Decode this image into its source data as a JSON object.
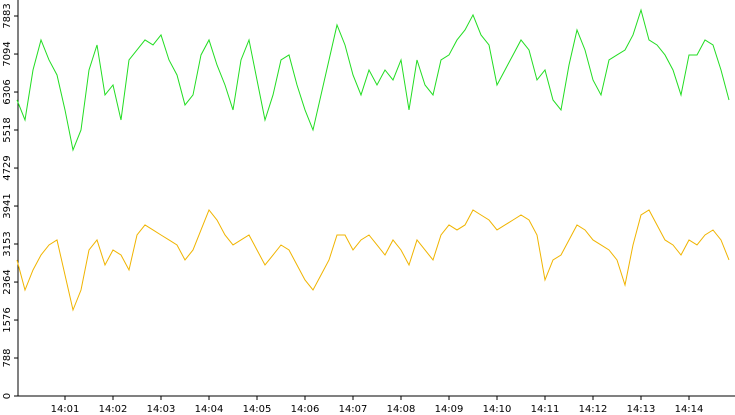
{
  "chart_data": {
    "type": "line",
    "categories": [
      null,
      null,
      null,
      null,
      null,
      null,
      "14:01",
      null,
      null,
      null,
      null,
      null,
      "14:02",
      null,
      null,
      null,
      null,
      null,
      "14:03",
      null,
      null,
      null,
      null,
      null,
      "14:04",
      null,
      null,
      null,
      null,
      null,
      "14:05",
      null,
      null,
      null,
      null,
      null,
      "14:06",
      null,
      null,
      null,
      null,
      null,
      "14:07",
      null,
      null,
      null,
      null,
      null,
      "14:08",
      null,
      null,
      null,
      null,
      null,
      "14:09",
      null,
      null,
      null,
      null,
      null,
      "14:10",
      null,
      null,
      null,
      null,
      null,
      "14:11",
      null,
      null,
      null,
      null,
      null,
      "14:12",
      null,
      null,
      null,
      null,
      null,
      "14:13",
      null,
      null,
      null,
      null,
      null,
      "14:14",
      null,
      null,
      null,
      null,
      null
    ],
    "series": [
      {
        "color": "#22dd22",
        "values": [
          6141,
          5726,
          6763,
          7386,
          6971,
          6660,
          5934,
          5104,
          5519,
          6763,
          7282,
          6245,
          6452,
          5726,
          6971,
          7178,
          7386,
          7282,
          7490,
          6971,
          6660,
          6037,
          6245,
          7075,
          7386,
          6867,
          6452,
          5934,
          6971,
          7386,
          6556,
          5726,
          6245,
          6971,
          7075,
          6452,
          5934,
          5519,
          6245,
          6971,
          7697,
          7282,
          6660,
          6245,
          6763,
          6452,
          6763,
          6556,
          6971,
          5934,
          6971,
          6452,
          6245,
          6971,
          7075,
          7386,
          7593,
          7905,
          7490,
          7282,
          6452,
          6763,
          7075,
          7386,
          7178,
          6556,
          6763,
          6141,
          5934,
          6867,
          7593,
          7178,
          6556,
          6245,
          6971,
          7075,
          7178,
          7490,
          8008,
          7386,
          7282,
          7075,
          6763,
          6245,
          7075,
          7075,
          7386,
          7282,
          6763,
          6141
        ]
      },
      {
        "color": "#f0b400",
        "values": [
          2822,
          2199,
          2614,
          2925,
          3133,
          3237,
          2510,
          1784,
          2199,
          3029,
          3237,
          2718,
          3029,
          2925,
          2614,
          3340,
          3548,
          3444,
          3340,
          3237,
          3133,
          2822,
          3029,
          3444,
          3859,
          3651,
          3340,
          3133,
          3237,
          3340,
          3029,
          2718,
          2925,
          3133,
          3029,
          2718,
          2407,
          2199,
          2510,
          2822,
          3340,
          3340,
          3029,
          3237,
          3340,
          3133,
          2925,
          3237,
          3029,
          2718,
          3237,
          3029,
          2822,
          3340,
          3548,
          3444,
          3548,
          3859,
          3755,
          3651,
          3444,
          3548,
          3651,
          3755,
          3651,
          3340,
          2407,
          2822,
          2925,
          3237,
          3548,
          3444,
          3237,
          3133,
          3029,
          2822,
          2303,
          3133,
          3755,
          3859,
          3548,
          3237,
          3133,
          2925,
          3237,
          3133,
          3340,
          3444,
          3237,
          2822
        ]
      }
    ],
    "ylim": [
      0,
      8215
    ],
    "yticks": [
      0,
      788,
      1576,
      2364,
      3153,
      3941,
      4729,
      5518,
      6306,
      7094,
      7883
    ]
  }
}
